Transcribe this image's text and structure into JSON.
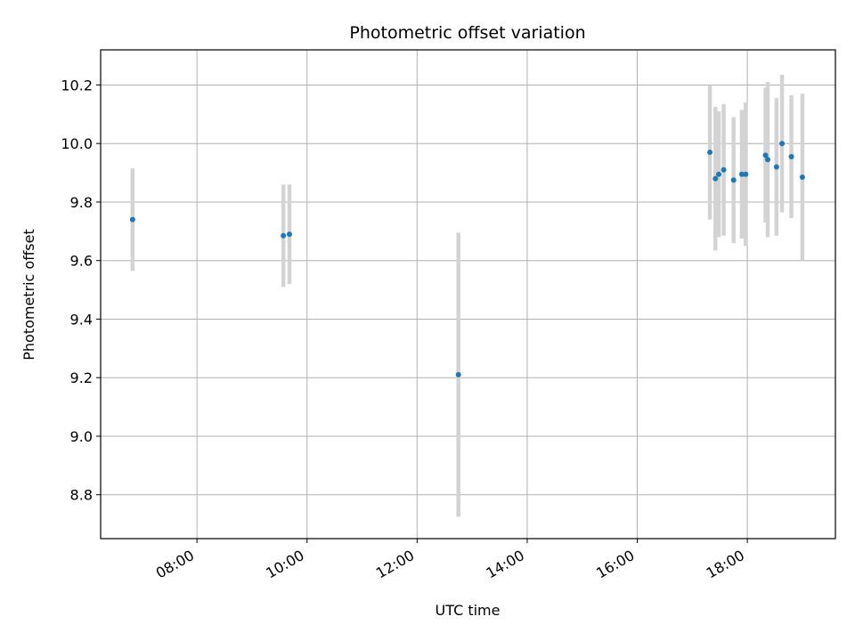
{
  "chart_data": {
    "type": "scatter",
    "title": "Photometric offset variation",
    "xlabel": "UTC time",
    "ylabel": "Photometric offset",
    "x_unit": "hours",
    "xlim": [
      6.25,
      19.6
    ],
    "ylim": [
      8.65,
      10.32
    ],
    "grid": true,
    "x_ticks": [
      {
        "value": 8,
        "label": "08:00"
      },
      {
        "value": 10,
        "label": "10:00"
      },
      {
        "value": 12,
        "label": "12:00"
      },
      {
        "value": 14,
        "label": "14:00"
      },
      {
        "value": 16,
        "label": "16:00"
      },
      {
        "value": 18,
        "label": "18:00"
      }
    ],
    "y_ticks": [
      {
        "value": 8.8,
        "label": "8.8"
      },
      {
        "value": 9.0,
        "label": "9.0"
      },
      {
        "value": 9.2,
        "label": "9.2"
      },
      {
        "value": 9.4,
        "label": "9.4"
      },
      {
        "value": 9.6,
        "label": "9.6"
      },
      {
        "value": 9.8,
        "label": "9.8"
      },
      {
        "value": 10.0,
        "label": "10.0"
      },
      {
        "value": 10.2,
        "label": "10.2"
      }
    ],
    "point_color": "#1f77b4",
    "errorbar_color": "#d3d3d3",
    "points": [
      {
        "x": 6.83,
        "y": 9.74,
        "err": 0.175
      },
      {
        "x": 9.57,
        "y": 9.685,
        "err": 0.175
      },
      {
        "x": 9.68,
        "y": 9.69,
        "err": 0.17
      },
      {
        "x": 12.75,
        "y": 9.21,
        "err": 0.485
      },
      {
        "x": 17.32,
        "y": 9.97,
        "err": 0.23
      },
      {
        "x": 17.42,
        "y": 9.88,
        "err": 0.245
      },
      {
        "x": 17.48,
        "y": 9.895,
        "err": 0.215
      },
      {
        "x": 17.57,
        "y": 9.91,
        "err": 0.225
      },
      {
        "x": 17.75,
        "y": 9.875,
        "err": 0.215
      },
      {
        "x": 17.9,
        "y": 9.895,
        "err": 0.22
      },
      {
        "x": 17.97,
        "y": 9.895,
        "err": 0.245
      },
      {
        "x": 18.33,
        "y": 9.96,
        "err": 0.23
      },
      {
        "x": 18.37,
        "y": 9.945,
        "err": 0.265
      },
      {
        "x": 18.53,
        "y": 9.92,
        "err": 0.235
      },
      {
        "x": 18.63,
        "y": 10.0,
        "err": 0.235
      },
      {
        "x": 18.8,
        "y": 9.955,
        "err": 0.21
      },
      {
        "x": 19.0,
        "y": 9.885,
        "err": 0.285
      }
    ]
  }
}
